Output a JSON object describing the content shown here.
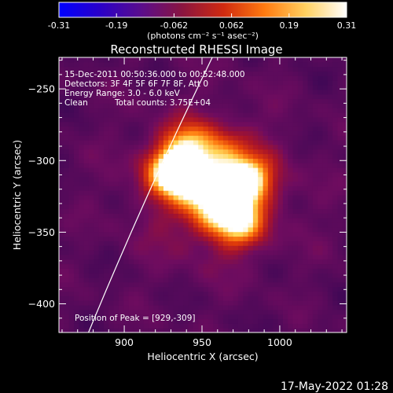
{
  "colorbar": {
    "ticks": [
      "-0.31",
      "-0.19",
      "-0.062",
      "0.062",
      "0.19",
      "0.31"
    ],
    "unit_label": "(photons cm⁻² s⁻¹ asec⁻²)",
    "colors": [
      "#0000ff",
      "#2a00c8",
      "#5a0d8c",
      "#8a1540",
      "#d02a10",
      "#ff7a10",
      "#ffd060",
      "#ffffff"
    ]
  },
  "chart_data": {
    "type": "heatmap",
    "title": "Reconstructed RHESSI Image",
    "xlabel": "Heliocentric X (arcsec)",
    "ylabel": "Heliocentric Y (arcsec)",
    "xlim": [
      858,
      1043
    ],
    "ylim": [
      -420,
      -228
    ],
    "x_ticks": [
      900,
      950,
      1000
    ],
    "y_ticks": [
      -250,
      -300,
      -350,
      -400
    ],
    "annotations": [
      "15-Dec-2011 00:50:36.000 to 00:52:48.000",
      "Detectors: 3F 4F 5F 6F 7F 8F, Att 0",
      "Energy Range: 3.0 - 6.0 keV",
      "Clean",
      "Total counts: 3.75E+04"
    ],
    "peak_label": "Position of Peak = [929,-309]",
    "peak": [
      929,
      -309
    ],
    "sources": [
      {
        "x": 929,
        "y": -309,
        "intensity": 1.0
      },
      {
        "x": 944,
        "y": -314,
        "intensity": 0.8
      },
      {
        "x": 938,
        "y": -290,
        "intensity": 0.55
      },
      {
        "x": 968,
        "y": -322,
        "intensity": 0.78
      },
      {
        "x": 978,
        "y": -314,
        "intensity": 0.7
      },
      {
        "x": 972,
        "y": -345,
        "intensity": 0.75
      },
      {
        "x": 955,
        "y": -335,
        "intensity": 0.55
      },
      {
        "x": 960,
        "y": -295,
        "intensity": 0.4
      }
    ]
  },
  "footer": {
    "timestamp": "17-May-2022 01:28"
  }
}
